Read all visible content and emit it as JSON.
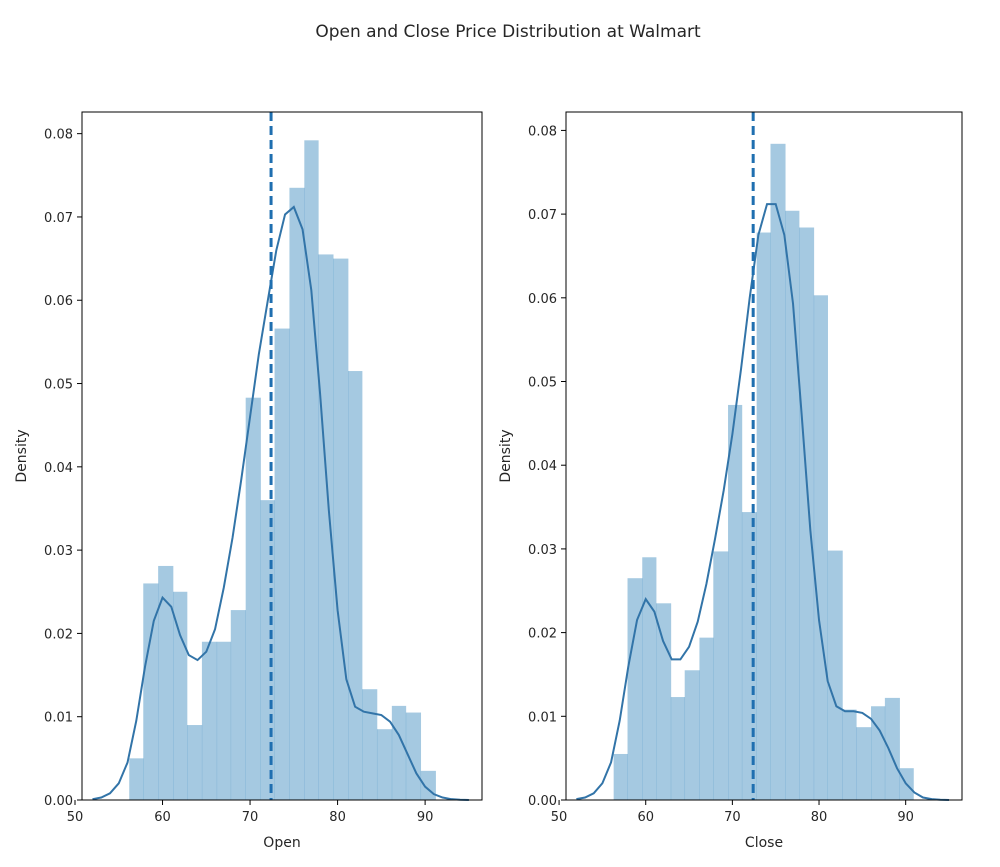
{
  "suptitle": "Open and Close Price Distribution at Walmart",
  "chart_data": [
    {
      "type": "histogram",
      "xlabel": "Open",
      "ylabel": "Density",
      "xlim": [
        50.8,
        96.5
      ],
      "ylim": [
        0,
        0.0826
      ],
      "xticks": [
        "50",
        "60",
        "70",
        "80",
        "90"
      ],
      "yticks": [
        "0.00",
        "0.01",
        "0.02",
        "0.03",
        "0.04",
        "0.05",
        "0.06",
        "0.07",
        "0.08"
      ],
      "bin_edges": [
        56.2,
        57.8,
        59.5,
        61.2,
        62.8,
        64.5,
        66.2,
        67.8,
        69.5,
        71.2,
        72.8,
        74.5,
        76.2,
        77.8,
        79.5,
        81.2,
        82.8,
        84.5,
        86.2,
        87.8,
        89.5,
        91.2
      ],
      "densities": [
        0.005,
        0.026,
        0.0281,
        0.025,
        0.009,
        0.019,
        0.019,
        0.0228,
        0.0483,
        0.036,
        0.0566,
        0.0735,
        0.0792,
        0.0655,
        0.065,
        0.0515,
        0.0133,
        0.0085,
        0.0113,
        0.0105,
        0.0035,
        0.0009
      ],
      "kde": {
        "x": [
          52,
          53,
          54,
          55,
          56,
          57,
          58,
          59,
          60,
          61,
          62,
          63,
          64,
          65,
          66,
          67,
          68,
          69,
          70,
          71,
          72,
          73,
          74,
          75,
          76,
          77,
          78,
          79,
          80,
          81,
          82,
          83,
          84,
          85,
          86,
          87,
          88,
          89,
          90,
          91,
          92,
          93,
          94,
          95
        ],
        "y": [
          0.0001,
          0.0003,
          0.0008,
          0.002,
          0.0045,
          0.0095,
          0.016,
          0.0215,
          0.0243,
          0.0232,
          0.0198,
          0.0174,
          0.0168,
          0.0178,
          0.0205,
          0.0255,
          0.0315,
          0.0385,
          0.046,
          0.0535,
          0.0598,
          0.066,
          0.0703,
          0.0712,
          0.0685,
          0.0612,
          0.0488,
          0.0348,
          0.0228,
          0.0145,
          0.0112,
          0.0106,
          0.0104,
          0.0102,
          0.0094,
          0.0078,
          0.0055,
          0.0032,
          0.0016,
          0.0007,
          0.0003,
          0.0001,
          3e-05,
          0.0
        ],
        "color": "#3274a8"
      },
      "mean": 72.4,
      "bar_color": "#1f77b4"
    },
    {
      "type": "histogram",
      "xlabel": "Close",
      "ylabel": "Density",
      "xlim": [
        50.8,
        96.5
      ],
      "ylim": [
        0,
        0.0822
      ],
      "xticks": [
        "50",
        "60",
        "70",
        "80",
        "90"
      ],
      "yticks": [
        "0.00",
        "0.01",
        "0.02",
        "0.03",
        "0.04",
        "0.05",
        "0.06",
        "0.07",
        "0.08"
      ],
      "bin_edges": [
        56.3,
        57.9,
        59.6,
        61.2,
        62.9,
        64.5,
        66.2,
        67.8,
        69.5,
        71.1,
        72.8,
        74.4,
        76.1,
        77.7,
        79.4,
        81.0,
        82.7,
        84.3,
        86.0,
        87.6,
        89.3,
        90.9
      ],
      "densities": [
        0.0055,
        0.0265,
        0.029,
        0.0235,
        0.0123,
        0.0155,
        0.0194,
        0.0297,
        0.0472,
        0.0344,
        0.0678,
        0.0784,
        0.0704,
        0.0684,
        0.0603,
        0.0298,
        0.0108,
        0.0087,
        0.0112,
        0.0122,
        0.0038,
        0.0022
      ],
      "kde": {
        "x": [
          52,
          53,
          54,
          55,
          56,
          57,
          58,
          59,
          60,
          61,
          62,
          63,
          64,
          65,
          66,
          67,
          68,
          69,
          70,
          71,
          72,
          73,
          74,
          75,
          76,
          77,
          78,
          79,
          80,
          81,
          82,
          83,
          84,
          85,
          86,
          87,
          88,
          89,
          90,
          91,
          92,
          93,
          94,
          95
        ],
        "y": [
          0.0001,
          0.0003,
          0.0008,
          0.002,
          0.0045,
          0.0095,
          0.016,
          0.0215,
          0.024,
          0.0225,
          0.019,
          0.0168,
          0.0168,
          0.0183,
          0.0213,
          0.0258,
          0.0312,
          0.037,
          0.0437,
          0.0515,
          0.06,
          0.0675,
          0.0712,
          0.0712,
          0.0675,
          0.0593,
          0.046,
          0.0322,
          0.0215,
          0.0142,
          0.0112,
          0.0106,
          0.0106,
          0.0104,
          0.0097,
          0.0083,
          0.0062,
          0.0038,
          0.002,
          0.0009,
          0.0003,
          0.0001,
          3e-05,
          0.0
        ],
        "color": "#3274a8"
      },
      "mean": 72.4,
      "bar_color": "#1f77b4"
    }
  ]
}
